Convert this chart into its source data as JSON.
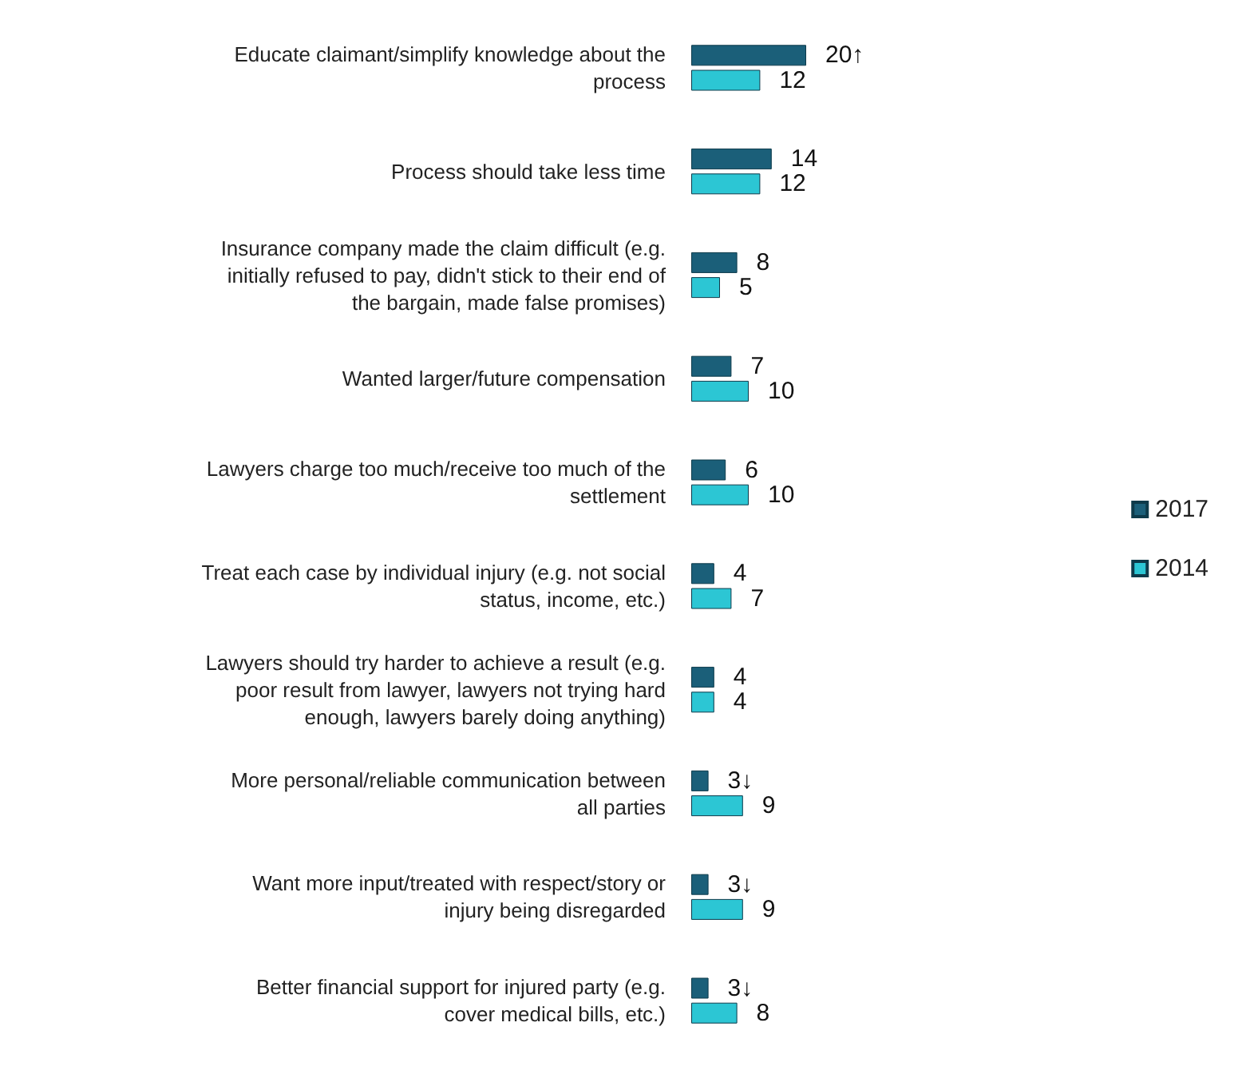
{
  "chart_data": {
    "type": "bar",
    "orientation": "horizontal",
    "legend": "right",
    "categories": [
      "Educate claimant/simplify knowledge about the\nprocess",
      "Process should take less time",
      "Insurance company made the claim difficult (e.g.\ninitially refused to pay, didn't stick to their end of\nthe bargain, made false promises)",
      "Wanted larger/future compensation",
      "Lawyers charge too much/receive too much of the\nsettlement",
      "Treat each case by individual injury (e.g. not social\nstatus, income, etc.)",
      "Lawyers should try harder to achieve a result (e.g.\npoor result from lawyer, lawyers not trying hard\nenough, lawyers barely doing anything)",
      "More personal/reliable communication between\nall parties",
      "Want more input/treated with respect/story or\ninjury being disregarded",
      "Better financial support for injured party (e.g.\ncover medical bills, etc.)"
    ],
    "series": [
      {
        "name": "2017",
        "color": "#1b5f79",
        "values": [
          20,
          14,
          8,
          7,
          6,
          4,
          4,
          3,
          3,
          3
        ],
        "value_labels": [
          "20↑",
          "14",
          "8",
          "7",
          "6",
          "4",
          "4",
          "3↓",
          "3↓",
          "3↓"
        ]
      },
      {
        "name": "2014",
        "color": "#2cc6d4",
        "values": [
          12,
          12,
          5,
          10,
          10,
          7,
          4,
          9,
          9,
          8
        ],
        "value_labels": [
          "12",
          "12",
          "5",
          "10",
          "10",
          "7",
          "4",
          "9",
          "9",
          "8"
        ]
      }
    ]
  }
}
